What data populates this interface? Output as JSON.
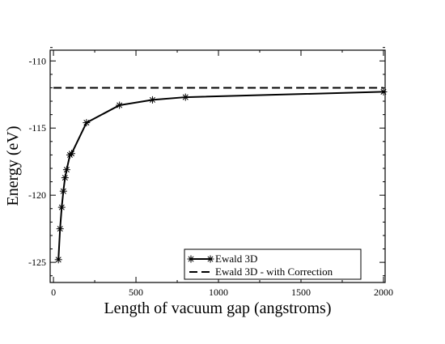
{
  "chart_data": {
    "type": "line",
    "xlabel": "Length of vacuum gap (angstroms)",
    "ylabel": "Energy (eV)",
    "xlim": [
      -20,
      2010
    ],
    "ylim": [
      -126.5,
      -109.2
    ],
    "xticks": [
      0,
      500,
      1000,
      1500,
      2000
    ],
    "yticks": [
      -110,
      -115,
      -120,
      -125
    ],
    "grid": false,
    "legend_position": "bottom-right",
    "series": [
      {
        "name": "Ewald 3D",
        "style": "solid",
        "marker": "asterisk",
        "color": "#000000",
        "x": [
          30,
          40,
          50,
          60,
          70,
          80,
          100,
          110,
          200,
          400,
          600,
          800,
          2000
        ],
        "y": [
          -124.8,
          -122.5,
          -120.9,
          -119.7,
          -118.7,
          -118.1,
          -117.0,
          -116.9,
          -114.6,
          -113.3,
          -112.9,
          -112.7,
          -112.3
        ]
      },
      {
        "name": "Ewald 3D - with Correction",
        "style": "dashed",
        "marker": "none",
        "color": "#000000",
        "x": [
          0,
          2000
        ],
        "y": [
          -112.0,
          -112.0
        ]
      }
    ]
  }
}
